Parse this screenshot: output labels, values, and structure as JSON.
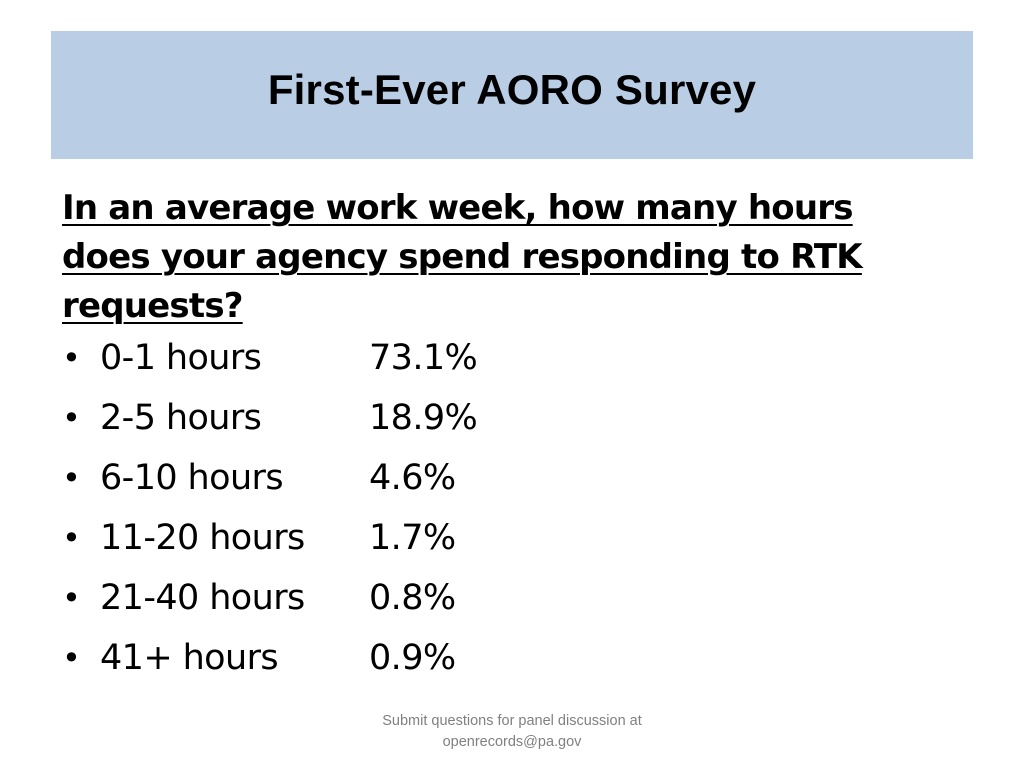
{
  "slide": {
    "title": "First-Ever AORO Survey",
    "question": "In an average work week, how many hours does your agency spend responding to RTK requests?",
    "bullet_glyph": "•",
    "responses": [
      {
        "range": "0-1 hours",
        "percent": "73.1%"
      },
      {
        "range": "2-5 hours",
        "percent": "18.9%"
      },
      {
        "range": "6-10 hours",
        "percent": "4.6%"
      },
      {
        "range": "11-20 hours",
        "percent": "1.7%"
      },
      {
        "range": "21-40 hours",
        "percent": "0.8%"
      },
      {
        "range": "41+ hours",
        "percent": "0.9%"
      }
    ],
    "footer_line1": "Submit questions for panel discussion at",
    "footer_line2": "openrecords@pa.gov"
  },
  "colors": {
    "title_band": "#b9cde5",
    "footer_text": "#808080"
  }
}
